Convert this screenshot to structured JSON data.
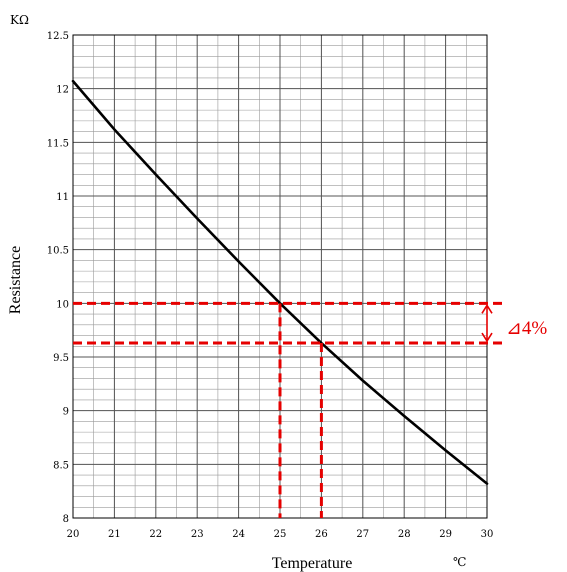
{
  "chart_data": {
    "type": "line",
    "title": "",
    "xlabel": "Temperature",
    "ylabel": "Resistance",
    "y_unit": "KΩ",
    "x_unit": "℃",
    "xlim": [
      20,
      30
    ],
    "ylim": [
      8,
      12.5
    ],
    "x_ticks": [
      "20",
      "21",
      "22",
      "23",
      "24",
      "25",
      "26",
      "27",
      "28",
      "29",
      "30"
    ],
    "y_ticks": [
      "8",
      "8.5",
      "9",
      "9.5",
      "10",
      "10.5",
      "11",
      "11.5",
      "12",
      "12.5"
    ],
    "grid": true,
    "minor_grid": {
      "x_step": 0.5,
      "y_step": 0.1
    },
    "series": [
      {
        "color": "#000000",
        "x": [
          20,
          21,
          22,
          23,
          24,
          25,
          26,
          27,
          28,
          29,
          30
        ],
        "y": [
          12.07,
          11.62,
          11.2,
          10.79,
          10.39,
          10.0,
          9.63,
          9.28,
          8.95,
          8.63,
          8.32
        ]
      }
    ],
    "annotations": {
      "color": "#e60000",
      "reference_points": [
        {
          "x": 25,
          "y": 10.0
        },
        {
          "x": 26,
          "y": 9.63
        }
      ],
      "delta_label": "⊿4%"
    }
  }
}
